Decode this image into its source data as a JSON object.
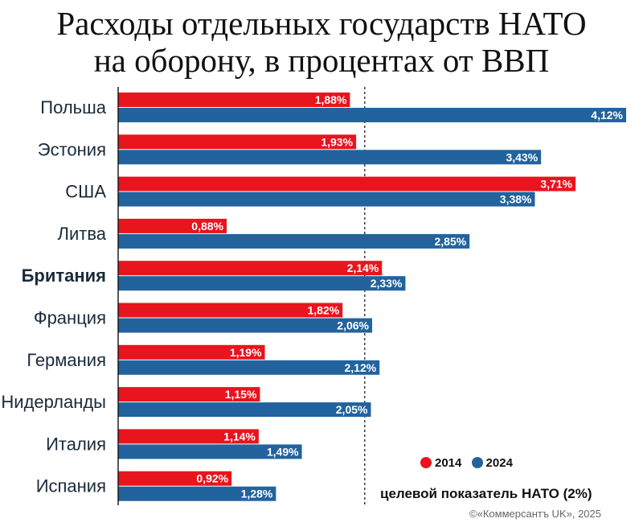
{
  "title_line1": "Расходы отдельных государств НАТО",
  "title_line2": "на оборону, в процентах от ВВП",
  "legend": [
    {
      "label": "2014",
      "color": "#e8141e"
    },
    {
      "label": "2024",
      "color": "#22639e"
    }
  ],
  "target_note": "целевой показатель НАТО (2%)",
  "credit": "©«Коммерсантъ UK», 2025",
  "chart_data": {
    "type": "bar",
    "orientation": "horizontal",
    "categories": [
      "Польша",
      "Эстония",
      "США",
      "Литва",
      "Британия",
      "Франция",
      "Германия",
      "Нидерланды",
      "Италия",
      "Испания"
    ],
    "highlight": "Британия",
    "series": [
      {
        "name": "2014",
        "color": "#e8141e",
        "values": [
          1.88,
          1.93,
          3.71,
          0.88,
          2.14,
          1.82,
          1.19,
          1.15,
          1.14,
          0.92
        ],
        "labels": [
          "1,88%",
          "1,93%",
          "3,71%",
          "0,88%",
          "2,14%",
          "1,82%",
          "1,19%",
          "1,15%",
          "1,14%",
          "0,92%"
        ]
      },
      {
        "name": "2024",
        "color": "#22639e",
        "values": [
          4.12,
          3.43,
          3.38,
          2.85,
          2.33,
          2.06,
          2.12,
          2.05,
          1.49,
          1.28
        ],
        "labels": [
          "4,12%",
          "3,43%",
          "3,38%",
          "2,85%",
          "2,33%",
          "2,06%",
          "2,12%",
          "2,05%",
          "1,49%",
          "1,28%"
        ]
      }
    ],
    "target_line": 2.0,
    "xlim": [
      0,
      4.2
    ]
  }
}
